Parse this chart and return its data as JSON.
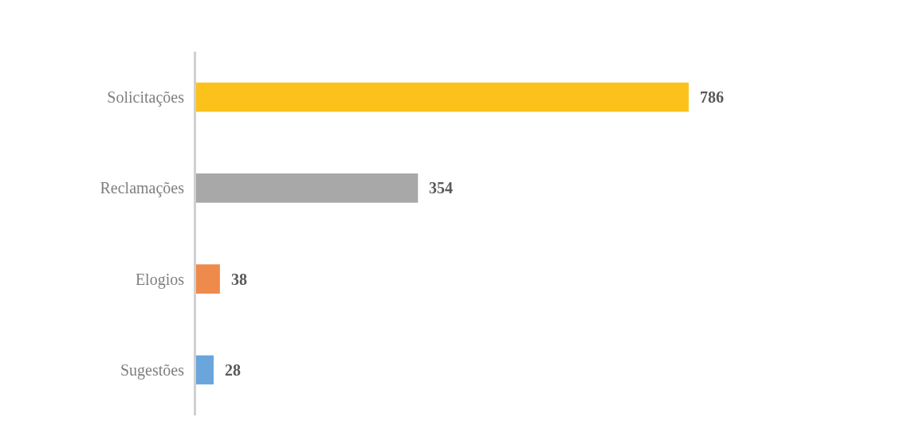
{
  "chart_data": {
    "type": "bar",
    "orientation": "horizontal",
    "categories": [
      "Solicitações",
      "Reclamações",
      "Elogios",
      "Sugestões"
    ],
    "values": [
      786,
      354,
      38,
      28
    ],
    "colors": [
      "#fcc21b",
      "#a8a8a8",
      "#ee8a4b",
      "#6aa6dc"
    ],
    "data_labels": true
  }
}
